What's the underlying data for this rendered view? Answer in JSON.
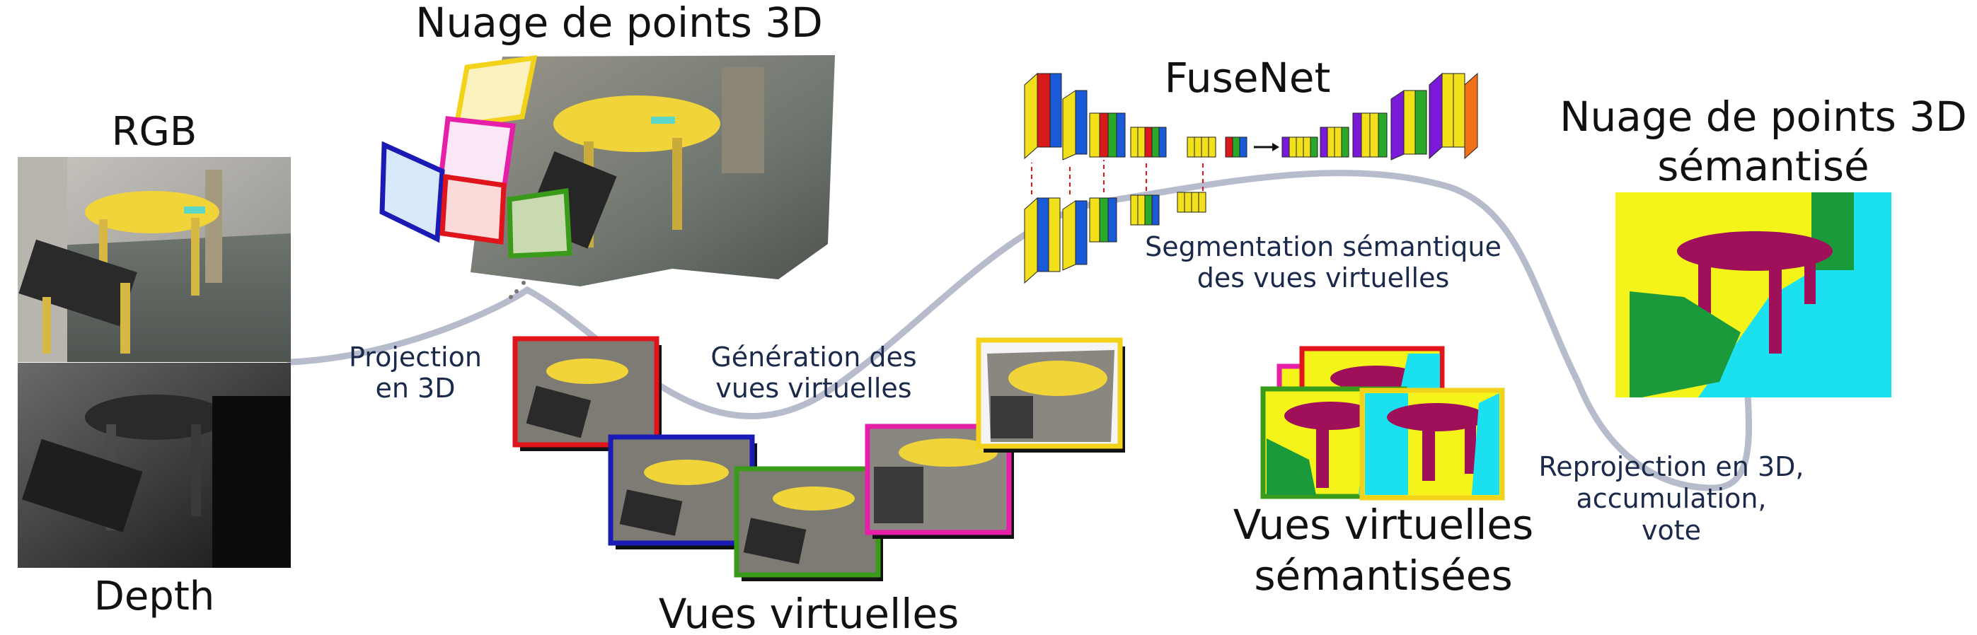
{
  "labels": {
    "rgb": "RGB",
    "depth": "Depth",
    "point_cloud": "Nuage de points 3D",
    "fusenet": "FuseNet",
    "semantic_cloud_line1": "Nuage de points 3D",
    "semantic_cloud_line2": "sémantisé",
    "virtual_views": "Vues virtuelles",
    "semantic_views_line1": "Vues virtuelles",
    "semantic_views_line2": "sémantisées"
  },
  "steps": {
    "projection_line1": "Projection",
    "projection_line2": "en 3D",
    "generation_line1": "Génération des",
    "generation_line2": "vues virtuelles",
    "segmentation_line1": "Segmentation sémantique",
    "segmentation_line2": "des vues virtuelles",
    "reprojection_line1": "Reprojection en 3D,",
    "reprojection_line2": "accumulation,",
    "reprojection_line3": "vote"
  },
  "colors": {
    "red": "#e0151b",
    "blue": "#1a1ab4",
    "green": "#3a9a1a",
    "magenta": "#e61ea8",
    "yellow": "#f2d21a",
    "black": "#111111",
    "flow_line": "#b6bccb",
    "seg_yellow": "#f4f41a",
    "seg_maroon": "#a0105a",
    "seg_cyan": "#1ae0f0",
    "seg_green": "#1a9a3a",
    "net_yellow": "#f2e01a",
    "net_blue": "#1a5ad8",
    "net_red": "#d81a1a",
    "net_green": "#2aa82a",
    "net_purple": "#7a1ad8",
    "net_orange": "#f0701a"
  }
}
